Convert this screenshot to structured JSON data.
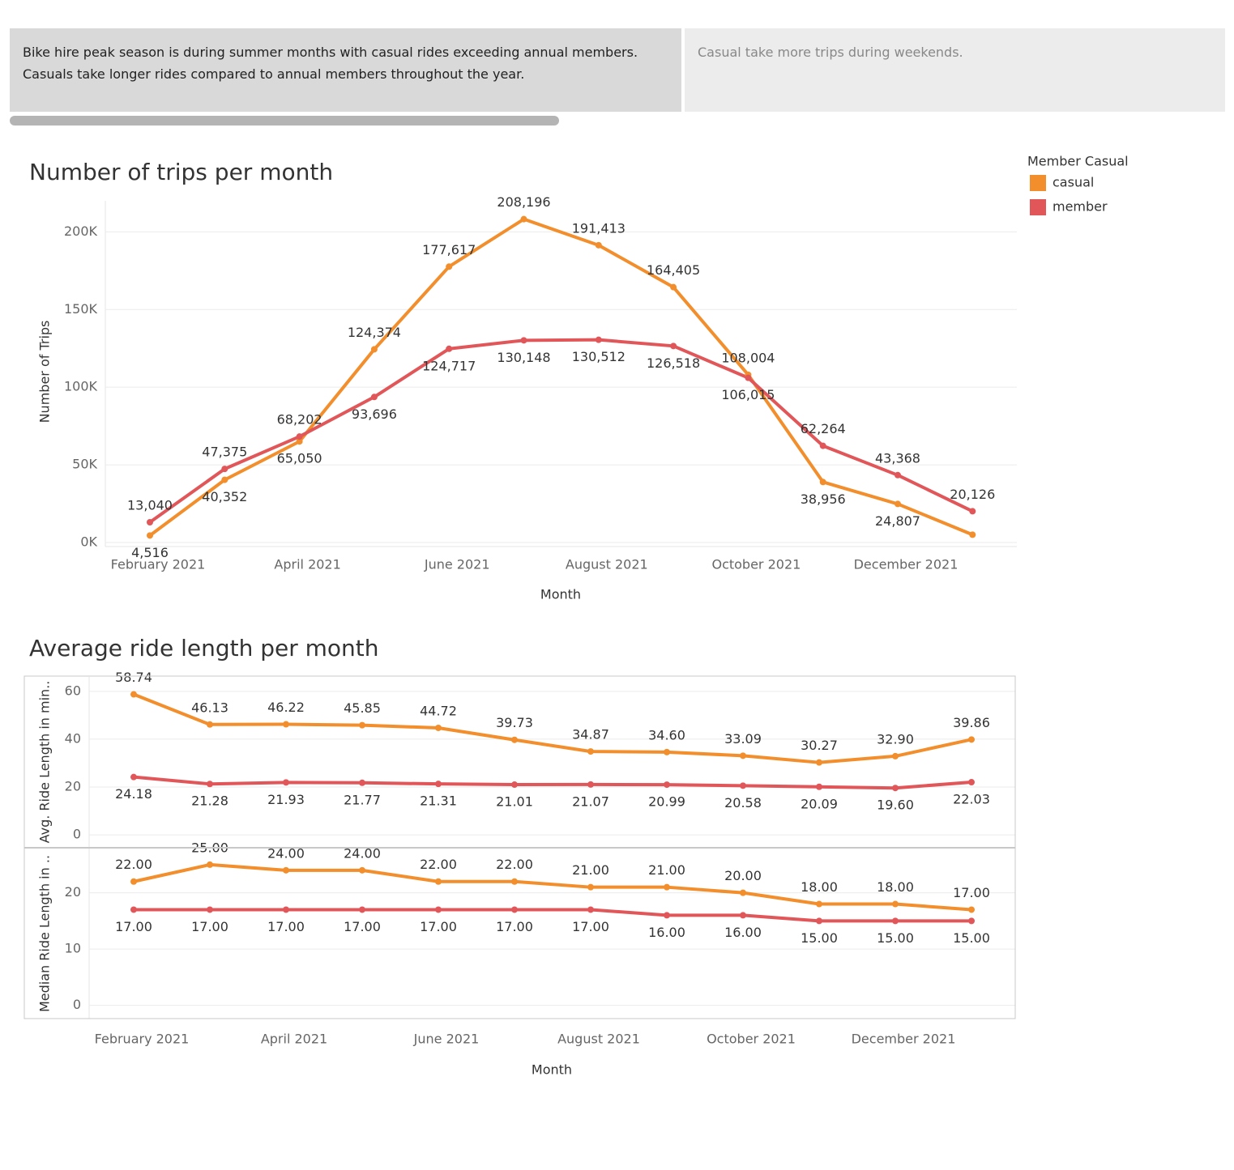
{
  "notes": [
    "Bike hire peak season is during summer months with casual rides exceeding annual members.",
    "Casuals take longer rides compared to annual members throughout the year.",
    "Casual take more trips during weekends."
  ],
  "chart_data": [
    {
      "type": "line",
      "title": "Number of trips per month",
      "xlabel": "Month",
      "ylabel": "Number of Trips",
      "legend_title": "Member Casual",
      "legend": "right",
      "x": [
        "2021-02",
        "2021-03",
        "2021-04",
        "2021-05",
        "2021-06",
        "2021-07",
        "2021-08",
        "2021-09",
        "2021-10",
        "2021-11",
        "2021-12",
        "2022-01"
      ],
      "xticks": [
        {
          "value": "2021-02",
          "label": "February 2021"
        },
        {
          "value": "2021-04",
          "label": "April 2021"
        },
        {
          "value": "2021-06",
          "label": "June 2021"
        },
        {
          "value": "2021-08",
          "label": "August 2021"
        },
        {
          "value": "2021-10",
          "label": "October 2021"
        },
        {
          "value": "2021-12",
          "label": "December 2021"
        }
      ],
      "ylim": [
        0,
        220000
      ],
      "yticks": [
        {
          "value": 0,
          "label": "0K"
        },
        {
          "value": 50000,
          "label": "50K"
        },
        {
          "value": 100000,
          "label": "100K"
        },
        {
          "value": 150000,
          "label": "150K"
        },
        {
          "value": 200000,
          "label": "200K"
        }
      ],
      "grid": true,
      "series": [
        {
          "name": "casual",
          "color": "#f28e2b",
          "values": [
            4516,
            40352,
            65050,
            124374,
            177617,
            208196,
            191413,
            164405,
            108004,
            38956,
            24807,
            5000
          ],
          "value_labels": [
            "4,516",
            "40,352",
            "65,050",
            "124,374",
            "177,617",
            "208,196",
            "191,413",
            "164,405",
            "108,004",
            "38,956",
            "24,807",
            null
          ]
        },
        {
          "name": "member",
          "color": "#e15759",
          "values": [
            13040,
            47375,
            68202,
            93696,
            124717,
            130148,
            130512,
            126518,
            106015,
            62264,
            43368,
            20126
          ],
          "value_labels": [
            "13,040",
            "47,375",
            "68,202",
            "93,696",
            "124,717",
            "130,148",
            "130,512",
            "126,518",
            "106,015",
            "62,264",
            "43,368",
            "20,126"
          ]
        }
      ]
    },
    {
      "type": "line",
      "title": "Average ride length per month",
      "xlabel": "Month",
      "x": [
        "2021-02",
        "2021-03",
        "2021-04",
        "2021-05",
        "2021-06",
        "2021-07",
        "2021-08",
        "2021-09",
        "2021-10",
        "2021-11",
        "2021-12",
        "2022-01"
      ],
      "xticks": [
        {
          "value": "2021-02",
          "label": "February 2021"
        },
        {
          "value": "2021-04",
          "label": "April 2021"
        },
        {
          "value": "2021-06",
          "label": "June 2021"
        },
        {
          "value": "2021-08",
          "label": "August 2021"
        },
        {
          "value": "2021-10",
          "label": "October 2021"
        },
        {
          "value": "2021-12",
          "label": "December 2021"
        }
      ],
      "grid": true,
      "panes": [
        {
          "ylabel": "Avg. Ride Length in min..",
          "ylim": [
            -3,
            64
          ],
          "yticks": [
            0,
            20,
            40,
            60
          ],
          "series": [
            {
              "name": "casual",
              "color": "#f28e2b",
              "values": [
                58.74,
                46.13,
                46.22,
                45.85,
                44.72,
                39.73,
                34.87,
                34.6,
                33.09,
                30.27,
                32.9,
                39.86
              ],
              "value_labels": [
                "58.74",
                "46.13",
                "46.22",
                "45.85",
                "44.72",
                "39.73",
                "34.87",
                "34.60",
                "33.09",
                "30.27",
                "32.90",
                "39.86"
              ]
            },
            {
              "name": "member",
              "color": "#e15759",
              "values": [
                24.18,
                21.28,
                21.93,
                21.77,
                21.31,
                21.01,
                21.07,
                20.99,
                20.58,
                20.09,
                19.6,
                22.03
              ],
              "value_labels": [
                "24.18",
                "21.28",
                "21.93",
                "21.77",
                "21.31",
                "21.01",
                "21.07",
                "20.99",
                "20.58",
                "20.09",
                "19.60",
                "22.03"
              ]
            }
          ]
        },
        {
          "ylabel": "Median Ride Length in ..",
          "ylim": [
            -1.5,
            27
          ],
          "yticks": [
            0,
            10,
            20
          ],
          "series": [
            {
              "name": "casual",
              "color": "#f28e2b",
              "values": [
                22,
                25,
                24,
                24,
                22,
                22,
                21,
                21,
                20,
                18,
                18,
                17
              ],
              "value_labels": [
                "22.00",
                "25.00",
                "24.00",
                "24.00",
                "22.00",
                "22.00",
                "21.00",
                "21.00",
                "20.00",
                "18.00",
                "18.00",
                "17.00"
              ]
            },
            {
              "name": "member",
              "color": "#e15759",
              "values": [
                17,
                17,
                17,
                17,
                17,
                17,
                17,
                16,
                16,
                15,
                15,
                15
              ],
              "value_labels": [
                "17.00",
                "17.00",
                "17.00",
                "17.00",
                "17.00",
                "17.00",
                "17.00",
                "16.00",
                "16.00",
                "15.00",
                "15.00",
                "15.00"
              ]
            }
          ]
        }
      ]
    }
  ]
}
